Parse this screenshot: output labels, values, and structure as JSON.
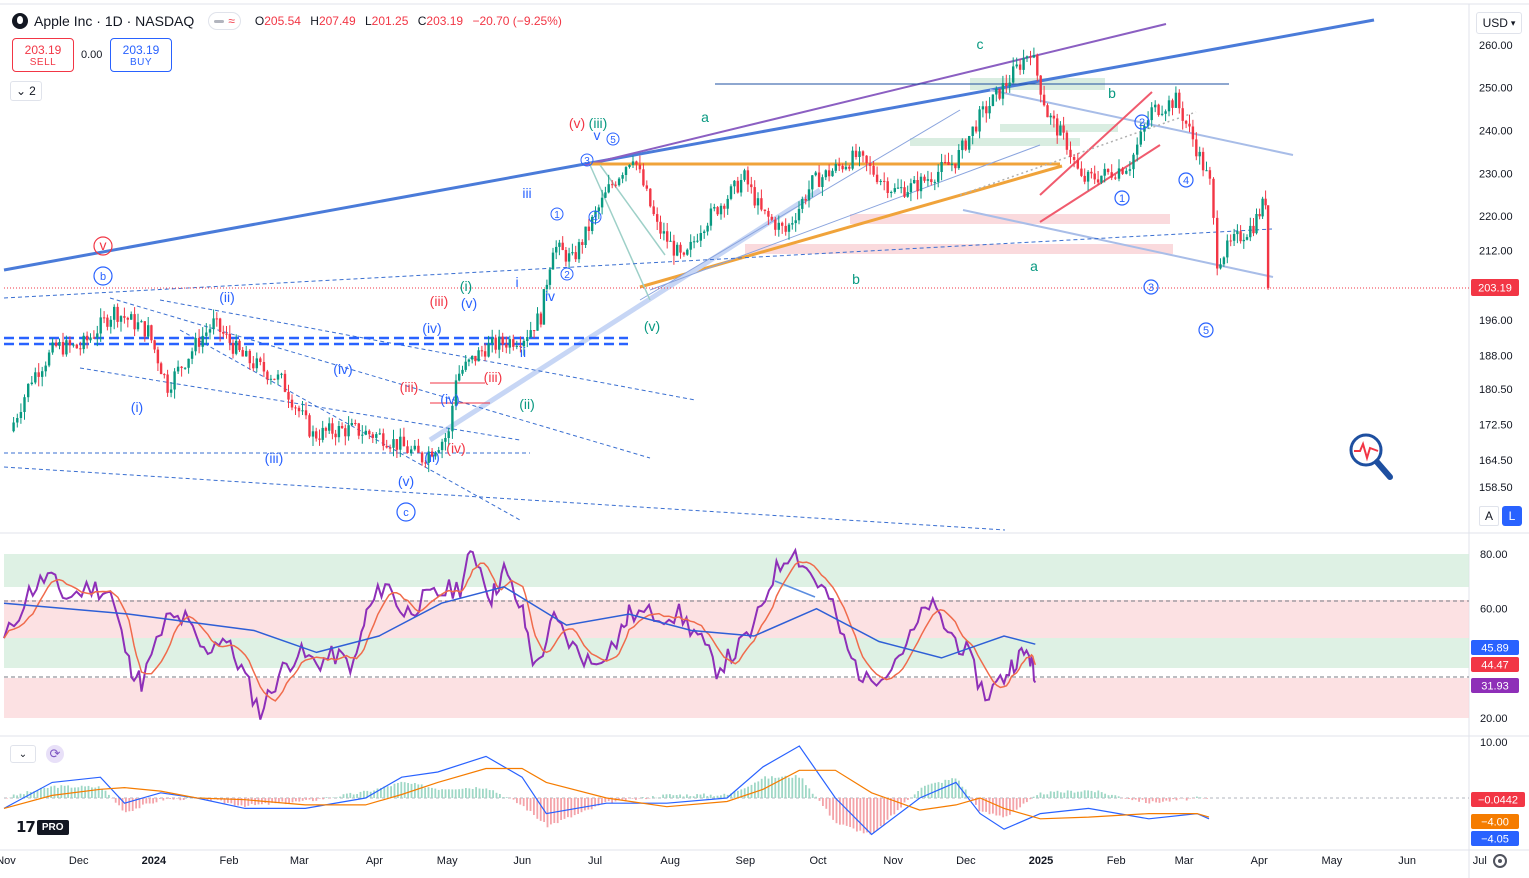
{
  "header": {
    "title": "Apple Inc · 1D · NASDAQ",
    "ohlc": {
      "o_label": "O",
      "o": "205.54",
      "h_label": "H",
      "h": "207.49",
      "l_label": "L",
      "l": "201.25",
      "c_label": "C",
      "c": "203.19",
      "change": "−20.70 (−9.25%)"
    }
  },
  "trade": {
    "sell_price": "203.19",
    "sell_label": "SELL",
    "spread": "0.00",
    "buy_price": "203.19",
    "buy_label": "BUY"
  },
  "legend_toggle": {
    "count": "2"
  },
  "currency": "USD",
  "scale_buttons": {
    "auto": "A",
    "log": "L"
  },
  "colors": {
    "up": "#089981",
    "down": "#f23645",
    "blue": "#2962ff",
    "price_tag": "#f23645"
  },
  "chart_data": [
    {
      "type": "candlestick",
      "title": "",
      "last_price": "203.19",
      "price_ticks": [
        "260.00",
        "250.00",
        "240.00",
        "230.00",
        "220.00",
        "212.00",
        "203.19",
        "196.00",
        "188.00",
        "180.50",
        "172.50",
        "164.50",
        "158.50"
      ],
      "x_ticks": [
        "Nov",
        "Dec",
        "2024",
        "Feb",
        "Mar",
        "Apr",
        "May",
        "Jun",
        "Jul",
        "Aug",
        "Sep",
        "Oct",
        "Nov",
        "Dec",
        "2025",
        "Feb",
        "Mar",
        "Apr",
        "May",
        "Jun",
        "Jul"
      ],
      "close_path": [
        [
          "2023-11-01",
          171.0
        ],
        [
          "2023-11-10",
          183.0
        ],
        [
          "2023-11-20",
          190.0
        ],
        [
          "2023-11-30",
          189.8
        ],
        [
          "2023-12-14",
          198.0
        ],
        [
          "2023-12-28",
          193.5
        ],
        [
          "2024-01-05",
          181.2
        ],
        [
          "2024-01-18",
          191.5
        ],
        [
          "2024-01-24",
          195.2
        ],
        [
          "2024-02-05",
          187.7
        ],
        [
          "2024-02-21",
          182.3
        ],
        [
          "2024-03-05",
          170.1
        ],
        [
          "2024-03-13",
          171.1
        ],
        [
          "2024-03-21",
          171.4
        ],
        [
          "2024-04-03",
          169.7
        ],
        [
          "2024-04-10",
          167.8
        ],
        [
          "2024-04-19",
          165.0
        ],
        [
          "2024-04-30",
          170.3
        ],
        [
          "2024-05-03",
          183.4
        ],
        [
          "2024-05-15",
          189.7
        ],
        [
          "2024-05-31",
          192.3
        ],
        [
          "2024-06-07",
          196.9
        ],
        [
          "2024-06-12",
          213.1
        ],
        [
          "2024-06-20",
          209.7
        ],
        [
          "2024-07-05",
          226.3
        ],
        [
          "2024-07-15",
          234.4
        ],
        [
          "2024-07-25",
          217.5
        ],
        [
          "2024-08-05",
          209.3
        ],
        [
          "2024-08-12",
          217.5
        ],
        [
          "2024-08-30",
          229.0
        ],
        [
          "2024-09-06",
          220.8
        ],
        [
          "2024-09-16",
          216.3
        ],
        [
          "2024-09-27",
          227.8
        ],
        [
          "2024-10-15",
          233.9
        ],
        [
          "2024-10-31",
          225.9
        ],
        [
          "2024-11-08",
          226.9
        ],
        [
          "2024-11-25",
          232.9
        ],
        [
          "2024-12-05",
          243.0
        ],
        [
          "2024-12-16",
          251.0
        ],
        [
          "2024-12-26",
          259.0
        ],
        [
          "2025-01-02",
          243.9
        ],
        [
          "2025-01-10",
          236.9
        ],
        [
          "2025-01-16",
          228.3
        ],
        [
          "2025-01-27",
          229.9
        ],
        [
          "2025-02-05",
          232.2
        ],
        [
          "2025-02-14",
          244.6
        ],
        [
          "2025-02-24",
          247.1
        ],
        [
          "2025-03-03",
          238.0
        ],
        [
          "2025-03-10",
          227.5
        ],
        [
          "2025-03-13",
          209.7
        ],
        [
          "2025-03-20",
          214.1
        ],
        [
          "2025-03-28",
          217.9
        ],
        [
          "2025-04-02",
          223.9
        ],
        [
          "2025-04-03",
          203.19
        ]
      ],
      "wave_labels": [
        "v",
        "b",
        "(ii)",
        "(i)",
        "(iv)",
        "(iii)",
        "(v)",
        "c",
        "(v)",
        "(iii)",
        "i",
        "ii",
        "iii",
        "iv",
        "(iii)",
        "(i)",
        "(v)",
        "(iv)",
        "(ii)",
        "(iii)",
        "(iv)",
        "(ii)",
        "(iv)",
        "(v)",
        "(iii)",
        "v",
        "a",
        "b",
        "c",
        "a",
        "b",
        "1",
        "2",
        "3",
        "4",
        "5"
      ],
      "circled_labels": [
        "b",
        "c",
        "1",
        "2",
        "3",
        "4",
        "5",
        "v",
        "(ii)"
      ]
    },
    {
      "type": "line",
      "title": "",
      "y_ticks": [
        "80.00",
        "60.00",
        "20.00"
      ],
      "current_values": {
        "fast": "45.89",
        "mid": "44.47",
        "slow": "31.93"
      },
      "ylim": [
        15,
        85
      ],
      "series": [
        {
          "values_path": [
            [
              0,
              48
            ],
            [
              0.02,
              66
            ],
            [
              0.035,
              72
            ],
            [
              0.05,
              64
            ],
            [
              0.07,
              68
            ],
            [
              0.085,
              66
            ],
            [
              0.1,
              40
            ],
            [
              0.11,
              33
            ],
            [
              0.13,
              56
            ],
            [
              0.145,
              56
            ],
            [
              0.16,
              44
            ],
            [
              0.175,
              50
            ],
            [
              0.19,
              38
            ],
            [
              0.205,
              22
            ],
            [
              0.22,
              36
            ],
            [
              0.235,
              44
            ],
            [
              0.25,
              40
            ],
            [
              0.265,
              43
            ],
            [
              0.28,
              39
            ],
            [
              0.29,
              58
            ],
            [
              0.305,
              70
            ],
            [
              0.32,
              58
            ],
            [
              0.335,
              63
            ],
            [
              0.35,
              66
            ],
            [
              0.365,
              68
            ],
            [
              0.375,
              82
            ],
            [
              0.39,
              64
            ],
            [
              0.4,
              74
            ],
            [
              0.415,
              58
            ],
            [
              0.425,
              38
            ],
            [
              0.44,
              56
            ],
            [
              0.455,
              46
            ],
            [
              0.47,
              40
            ],
            [
              0.49,
              48
            ],
            [
              0.5,
              58
            ],
            [
              0.52,
              58
            ],
            [
              0.54,
              58
            ],
            [
              0.555,
              50
            ],
            [
              0.57,
              38
            ],
            [
              0.585,
              44
            ],
            [
              0.6,
              53
            ],
            [
              0.615,
              72
            ],
            [
              0.63,
              82
            ],
            [
              0.645,
              73
            ],
            [
              0.66,
              64
            ],
            [
              0.675,
              44
            ],
            [
              0.69,
              33
            ],
            [
              0.71,
              40
            ],
            [
              0.725,
              49
            ],
            [
              0.74,
              62
            ],
            [
              0.755,
              52
            ],
            [
              0.77,
              44
            ],
            [
              0.785,
              28
            ],
            [
              0.8,
              35
            ],
            [
              0.81,
              42
            ],
            [
              0.82,
              44
            ],
            [
              0.825,
              33
            ]
          ]
        },
        {
          "values_path": [
            [
              0,
              62
            ],
            [
              0.1,
              58
            ],
            [
              0.2,
              52
            ],
            [
              0.25,
              44
            ],
            [
              0.3,
              50
            ],
            [
              0.35,
              62
            ],
            [
              0.4,
              68
            ],
            [
              0.45,
              54
            ],
            [
              0.5,
              58
            ],
            [
              0.55,
              52
            ],
            [
              0.6,
              50
            ],
            [
              0.65,
              60
            ],
            [
              0.7,
              48
            ],
            [
              0.75,
              42
            ],
            [
              0.8,
              50
            ],
            [
              0.825,
              47
            ]
          ]
        }
      ]
    },
    {
      "type": "line",
      "title": "",
      "y_ticks": [
        "10.00"
      ],
      "current_values": {
        "hist": "−0.0442",
        "signal": "−4.00",
        "macd": "−4.05"
      }
    }
  ]
}
